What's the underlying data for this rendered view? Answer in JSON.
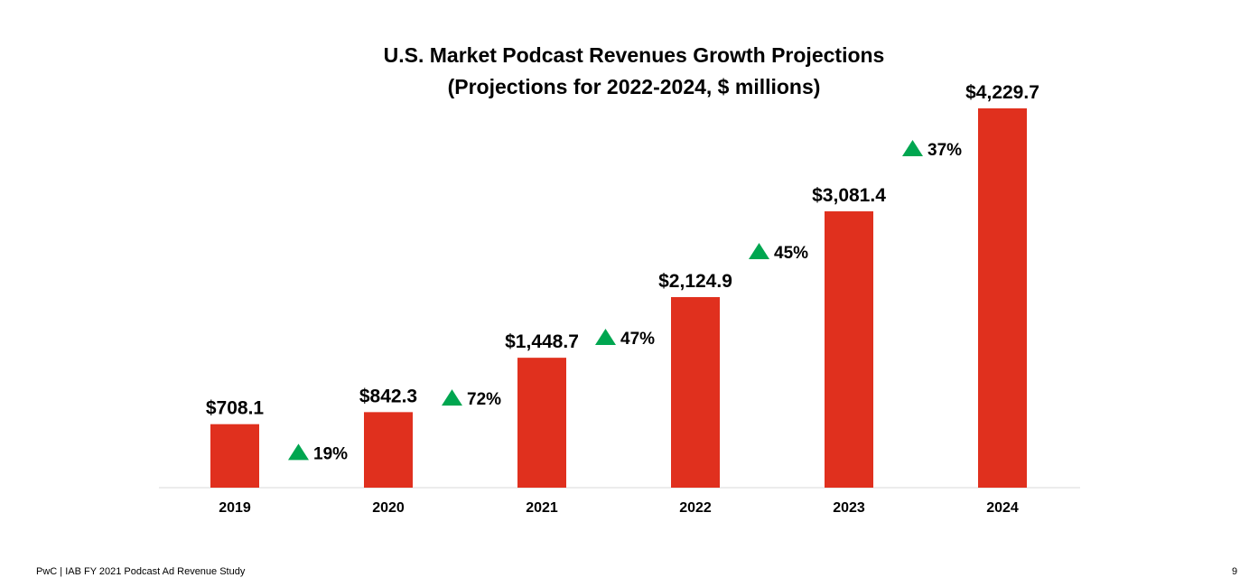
{
  "chart_data": {
    "type": "bar",
    "title": "U.S. Market Podcast Revenues Growth Projections",
    "subtitle": "(Projections for 2022-2024, $ millions)",
    "categories": [
      "2019",
      "2020",
      "2021",
      "2022",
      "2023",
      "2024"
    ],
    "values": [
      708.1,
      842.3,
      1448.7,
      2124.9,
      3081.4,
      4229.7
    ],
    "value_labels": [
      "$708.1",
      "$842.3",
      "$1,448.7",
      "$2,124.9",
      "$3,081.4",
      "$4,229.7"
    ],
    "growth_labels": [
      "19%",
      "72%",
      "47%",
      "45%",
      "37%"
    ],
    "bar_color": "#e0301e",
    "growth_icon": "up-triangle-icon",
    "growth_color": "#00a650",
    "grid": false,
    "legend": "none",
    "ylim": [
      0,
      4229.7
    ]
  },
  "footer": {
    "left": "PwC  |  IAB FY 2021 Podcast Ad Revenue Study",
    "page": "9"
  }
}
